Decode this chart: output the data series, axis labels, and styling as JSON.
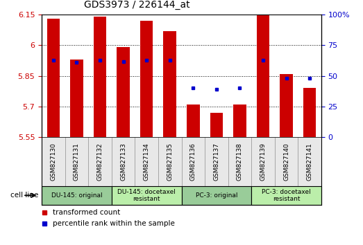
{
  "title": "GDS3973 / 226144_at",
  "samples": [
    "GSM827130",
    "GSM827131",
    "GSM827132",
    "GSM827133",
    "GSM827134",
    "GSM827135",
    "GSM827136",
    "GSM827137",
    "GSM827138",
    "GSM827139",
    "GSM827140",
    "GSM827141"
  ],
  "bar_values": [
    6.13,
    5.93,
    6.14,
    5.99,
    6.12,
    6.07,
    5.71,
    5.67,
    5.71,
    6.15,
    5.86,
    5.79
  ],
  "percentile_values": [
    63,
    61,
    63,
    62,
    63,
    63,
    40,
    39,
    40,
    63,
    48,
    48
  ],
  "bar_color": "#cc0000",
  "percentile_color": "#0000cc",
  "ylim_left": [
    5.55,
    6.15
  ],
  "ylim_right": [
    0,
    100
  ],
  "yticks_left": [
    5.55,
    5.7,
    5.85,
    6.0,
    6.15
  ],
  "yticks_right": [
    0,
    25,
    50,
    75,
    100
  ],
  "ytick_labels_left": [
    "5.55",
    "5.7",
    "5.85",
    "6",
    "6.15"
  ],
  "ytick_labels_right": [
    "0",
    "25",
    "50",
    "75",
    "100%"
  ],
  "cell_line_groups": [
    {
      "label": "DU-145: original",
      "start": 0,
      "end": 3,
      "color": "#aaddaa"
    },
    {
      "label": "DU-145: docetaxel\nresistant",
      "start": 3,
      "end": 6,
      "color": "#cceecc"
    },
    {
      "label": "PC-3: original",
      "start": 6,
      "end": 9,
      "color": "#aaddaa"
    },
    {
      "label": "PC-3: docetaxel\nresistant",
      "start": 9,
      "end": 12,
      "color": "#cceecc"
    }
  ],
  "cell_line_label": "cell line",
  "legend_bar_label": "transformed count",
  "legend_dot_label": "percentile rank within the sample",
  "bar_width": 0.55,
  "tick_color_left": "#cc0000",
  "tick_color_right": "#0000cc"
}
